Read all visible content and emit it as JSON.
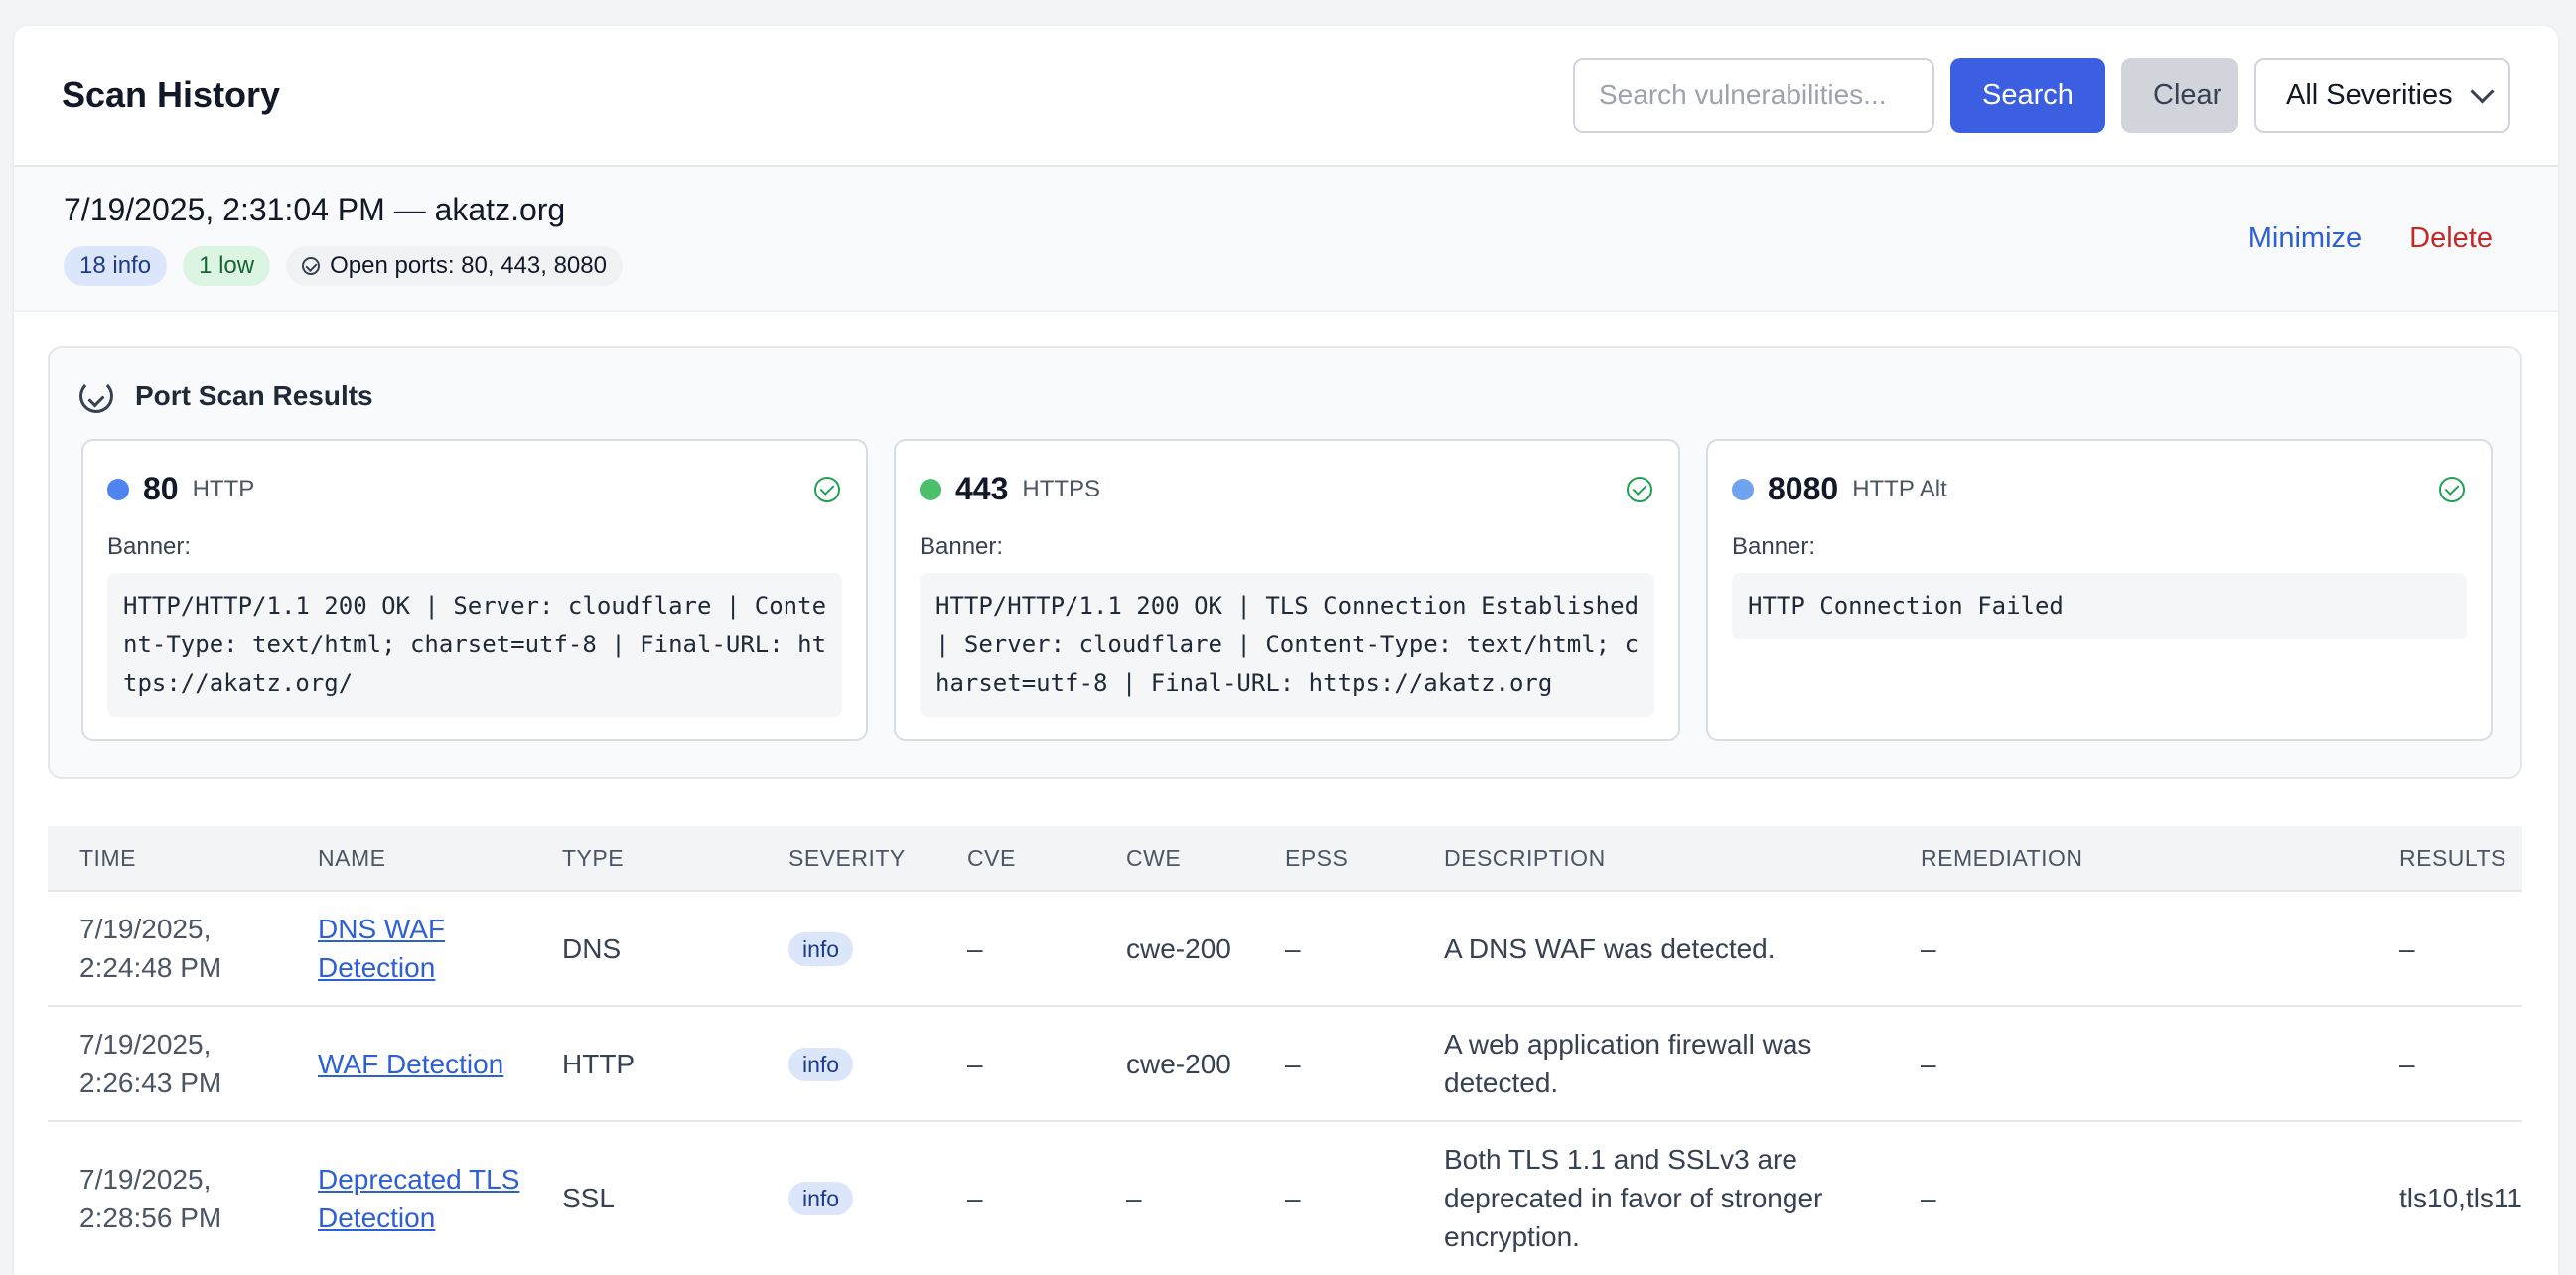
{
  "header": {
    "title": "Scan History",
    "search_placeholder": "Search vulnerabilities...",
    "search_label": "Search",
    "clear_label": "Clear",
    "severity_filter": "All Severities"
  },
  "scan": {
    "title": "7/19/2025, 2:31:04 PM — akatz.org",
    "badge_info": "18 info",
    "badge_low": "1 low",
    "open_ports": "Open ports: 80, 443, 8080",
    "minimize_label": "Minimize",
    "delete_label": "Delete"
  },
  "port_scan": {
    "title": "Port Scan Results",
    "banner_label": "Banner:",
    "ports": [
      {
        "port": "80",
        "service": "HTTP",
        "dot_color": "#4f83ef",
        "banner": "HTTP/HTTP/1.1 200 OK | Server: cloudflare | Content-Type: text/html; charset=utf-8 | Final-URL: https://akatz.org/"
      },
      {
        "port": "443",
        "service": "HTTPS",
        "dot_color": "#4cbf6a",
        "banner": "HTTP/HTTP/1.1 200 OK | TLS Connection Established | Server: cloudflare | Content-Type: text/html; charset=utf-8 | Final-URL: https://akatz.org"
      },
      {
        "port": "8080",
        "service": "HTTP Alt",
        "dot_color": "#6fa2ef",
        "banner": "HTTP Connection Failed"
      }
    ]
  },
  "table": {
    "columns": [
      "TIME",
      "NAME",
      "TYPE",
      "SEVERITY",
      "CVE",
      "CWE",
      "EPSS",
      "DESCRIPTION",
      "REMEDIATION",
      "RESULTS"
    ],
    "rows": [
      {
        "time": "7/19/2025, 2:24:48 PM",
        "name": "DNS WAF Detection",
        "type": "DNS",
        "severity": "info",
        "cve": "–",
        "cwe": "cwe-200",
        "epss": "–",
        "description": "A DNS WAF was detected.",
        "remediation": "–",
        "results": "–"
      },
      {
        "time": "7/19/2025, 2:26:43 PM",
        "name": "WAF Detection",
        "type": "HTTP",
        "severity": "info",
        "cve": "–",
        "cwe": "cwe-200",
        "epss": "–",
        "description": "A web application firewall was detected.",
        "remediation": "–",
        "results": "–"
      },
      {
        "time": "7/19/2025, 2:28:56 PM",
        "name": "Deprecated TLS Detection",
        "type": "SSL",
        "severity": "info",
        "cve": "–",
        "cwe": "–",
        "epss": "–",
        "description": "Both TLS 1.1 and SSLv3 are deprecated in favor of stronger encryption.",
        "remediation": "–",
        "results": "tls10,tls11"
      }
    ]
  }
}
